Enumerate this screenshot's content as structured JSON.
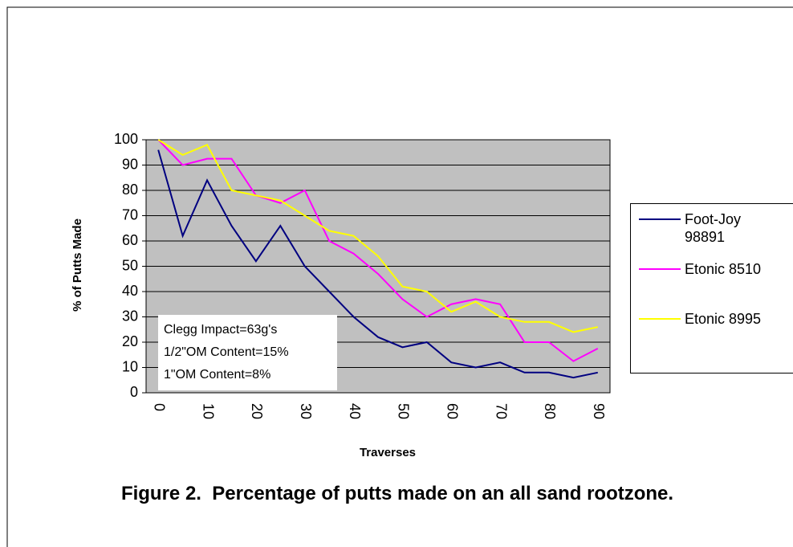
{
  "chart_data": {
    "type": "line",
    "title": "Figure 2.  Percentage of putts made on an all sand rootzone.",
    "x_label": "Traverses",
    "y_label": "% of Putts Made",
    "categories": [
      0,
      null,
      10,
      null,
      20,
      null,
      30,
      null,
      40,
      null,
      50,
      null,
      60,
      null,
      70,
      null,
      80,
      null,
      90
    ],
    "series": [
      {
        "name": "Foot-Joy 98891",
        "color": "#000080",
        "values": [
          96,
          62,
          84,
          66,
          52,
          66,
          50,
          40,
          30,
          22,
          18,
          20,
          12,
          10,
          12,
          8,
          8,
          6,
          8
        ]
      },
      {
        "name": "Etonic 8510",
        "color": "#ff00ff",
        "values": [
          100,
          90,
          92.5,
          92.5,
          78,
          75,
          80,
          60,
          55,
          47,
          37,
          30,
          35,
          37,
          35,
          20,
          20,
          12.5,
          17.5
        ]
      },
      {
        "name": "Etonic 8995",
        "color": "#ffff00",
        "values": [
          100,
          94,
          98,
          80,
          78,
          76,
          70,
          64,
          62,
          54,
          42,
          40,
          32,
          36,
          30,
          28,
          28,
          24,
          26
        ]
      }
    ],
    "annotations": [
      "Clegg Impact=63g's",
      "1/2\"OM Content=15%",
      "1\"OM Content=8%"
    ],
    "ylim": [
      0,
      100
    ],
    "yticks": [
      0,
      10,
      20,
      30,
      40,
      50,
      60,
      70,
      80,
      90,
      100
    ],
    "grid": true,
    "plot_background": "#c0c0c0",
    "legend_position": "right"
  }
}
